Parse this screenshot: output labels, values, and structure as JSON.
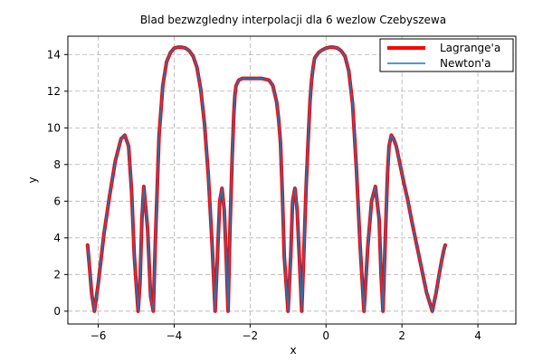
{
  "chart_data": {
    "type": "line",
    "title": "Blad bezwzgledny interpolacji dla 6 wezlow Czebyszewa",
    "xlabel": "x",
    "ylabel": "y",
    "xlim": [
      -6.8,
      5.0
    ],
    "ylim": [
      -0.7,
      15.0
    ],
    "xticks": [
      -6,
      -4,
      -2,
      0,
      2,
      4
    ],
    "yticks": [
      0,
      2,
      4,
      6,
      8,
      10,
      12,
      14
    ],
    "grid": true,
    "legend_position": "top-right",
    "series": [
      {
        "name": "Lagrange'a",
        "color": "#ff0000",
        "x": [
          -6.28,
          -6.23,
          -6.17,
          -6.1,
          -6.0,
          -5.85,
          -5.7,
          -5.55,
          -5.4,
          -5.3,
          -5.2,
          -5.12,
          -5.05,
          -4.95,
          -4.9,
          -4.85,
          -4.8,
          -4.7,
          -4.62,
          -4.55,
          -4.5,
          -4.4,
          -4.3,
          -4.2,
          -4.1,
          -4.0,
          -3.9,
          -3.8,
          -3.7,
          -3.6,
          -3.5,
          -3.4,
          -3.3,
          -3.2,
          -3.1,
          -3.0,
          -2.92,
          -2.86,
          -2.8,
          -2.74,
          -2.68,
          -2.63,
          -2.58,
          -2.53,
          -2.47,
          -2.43,
          -2.4,
          -2.37,
          -2.3,
          -2.2,
          -2.1,
          -2.0,
          -1.9,
          -1.8,
          -1.7,
          -1.6,
          -1.5,
          -1.4,
          -1.3,
          -1.25,
          -1.2,
          -1.15,
          -1.1,
          -1.0,
          -0.93,
          -0.88,
          -0.82,
          -0.76,
          -0.7,
          -0.64,
          -0.58,
          -0.52,
          -0.46,
          -0.42,
          -0.38,
          -0.34,
          -0.3,
          -0.2,
          -0.1,
          0.0,
          0.1,
          0.2,
          0.3,
          0.4,
          0.5,
          0.6,
          0.7,
          0.8,
          0.9,
          1.0,
          1.1,
          1.2,
          1.3,
          1.4,
          1.45,
          1.5,
          1.57,
          1.62,
          1.66,
          1.72,
          1.78,
          1.85,
          1.95,
          2.05,
          2.15,
          2.25,
          2.35,
          2.5,
          2.65,
          2.8,
          2.9,
          2.98,
          3.05,
          3.1,
          3.14
        ],
        "y": [
          3.6,
          2.4,
          0.9,
          0.0,
          1.5,
          4.2,
          6.3,
          8.2,
          9.4,
          9.6,
          9.0,
          6.5,
          3.0,
          0.0,
          1.5,
          5.0,
          6.8,
          4.5,
          0.8,
          0.0,
          3.5,
          9.5,
          12.3,
          13.6,
          14.1,
          14.35,
          14.4,
          14.4,
          14.35,
          14.2,
          13.9,
          13.3,
          12.1,
          10.2,
          7.4,
          3.6,
          0.0,
          3.0,
          6.0,
          6.7,
          5.5,
          3.0,
          0.0,
          4.5,
          8.5,
          10.7,
          11.8,
          12.3,
          12.6,
          12.7,
          12.7,
          12.7,
          12.7,
          12.7,
          12.7,
          12.65,
          12.6,
          12.3,
          11.4,
          10.5,
          9.2,
          6.4,
          3.0,
          0.0,
          3.0,
          6.0,
          6.7,
          5.5,
          2.8,
          0.0,
          3.4,
          7.0,
          9.8,
          11.5,
          12.6,
          13.3,
          13.8,
          14.1,
          14.25,
          14.35,
          14.4,
          14.4,
          14.35,
          14.2,
          13.9,
          13.1,
          11.3,
          7.8,
          3.5,
          0.0,
          3.5,
          6.0,
          6.8,
          5.0,
          2.0,
          0.0,
          4.5,
          7.5,
          9.0,
          9.6,
          9.4,
          9.0,
          8.0,
          7.0,
          6.1,
          5.0,
          4.0,
          2.5,
          1.0,
          0.0,
          1.0,
          2.0,
          2.8,
          3.3,
          3.6
        ]
      },
      {
        "name": "Newton'a",
        "color": "#1f77b4",
        "x": [
          -6.28,
          -6.23,
          -6.17,
          -6.1,
          -6.0,
          -5.85,
          -5.7,
          -5.55,
          -5.4,
          -5.3,
          -5.2,
          -5.12,
          -5.05,
          -4.95,
          -4.9,
          -4.85,
          -4.8,
          -4.7,
          -4.62,
          -4.55,
          -4.5,
          -4.4,
          -4.3,
          -4.2,
          -4.1,
          -4.0,
          -3.9,
          -3.8,
          -3.7,
          -3.6,
          -3.5,
          -3.4,
          -3.3,
          -3.2,
          -3.1,
          -3.0,
          -2.92,
          -2.86,
          -2.8,
          -2.74,
          -2.68,
          -2.63,
          -2.58,
          -2.53,
          -2.47,
          -2.43,
          -2.4,
          -2.37,
          -2.3,
          -2.2,
          -2.1,
          -2.0,
          -1.9,
          -1.8,
          -1.7,
          -1.6,
          -1.5,
          -1.4,
          -1.3,
          -1.25,
          -1.2,
          -1.15,
          -1.1,
          -1.0,
          -0.93,
          -0.88,
          -0.82,
          -0.76,
          -0.7,
          -0.64,
          -0.58,
          -0.52,
          -0.46,
          -0.42,
          -0.38,
          -0.34,
          -0.3,
          -0.2,
          -0.1,
          0.0,
          0.1,
          0.2,
          0.3,
          0.4,
          0.5,
          0.6,
          0.7,
          0.8,
          0.9,
          1.0,
          1.1,
          1.2,
          1.3,
          1.4,
          1.45,
          1.5,
          1.57,
          1.62,
          1.66,
          1.72,
          1.78,
          1.85,
          1.95,
          2.05,
          2.15,
          2.25,
          2.35,
          2.5,
          2.65,
          2.8,
          2.9,
          2.98,
          3.05,
          3.1,
          3.14
        ],
        "y": [
          3.6,
          2.4,
          0.9,
          0.0,
          1.5,
          4.2,
          6.3,
          8.2,
          9.4,
          9.6,
          9.0,
          6.5,
          3.0,
          0.0,
          1.5,
          5.0,
          6.8,
          4.5,
          0.8,
          0.0,
          3.5,
          9.5,
          12.3,
          13.6,
          14.1,
          14.35,
          14.4,
          14.4,
          14.35,
          14.2,
          13.9,
          13.3,
          12.1,
          10.2,
          7.4,
          3.6,
          0.0,
          3.0,
          6.0,
          6.7,
          5.5,
          3.0,
          0.0,
          4.5,
          8.5,
          10.7,
          11.8,
          12.3,
          12.6,
          12.7,
          12.7,
          12.7,
          12.7,
          12.7,
          12.7,
          12.65,
          12.6,
          12.3,
          11.4,
          10.5,
          9.2,
          6.4,
          3.0,
          0.0,
          3.0,
          6.0,
          6.7,
          5.5,
          2.8,
          0.0,
          3.4,
          7.0,
          9.8,
          11.5,
          12.6,
          13.3,
          13.8,
          14.1,
          14.25,
          14.35,
          14.4,
          14.4,
          14.35,
          14.2,
          13.9,
          13.1,
          11.3,
          7.8,
          3.5,
          0.0,
          3.5,
          6.0,
          6.8,
          5.0,
          2.0,
          0.0,
          4.5,
          7.5,
          9.0,
          9.6,
          9.4,
          9.0,
          8.0,
          7.0,
          6.1,
          5.0,
          4.0,
          2.5,
          1.0,
          0.0,
          1.0,
          2.0,
          2.8,
          3.3,
          3.6
        ]
      }
    ]
  }
}
